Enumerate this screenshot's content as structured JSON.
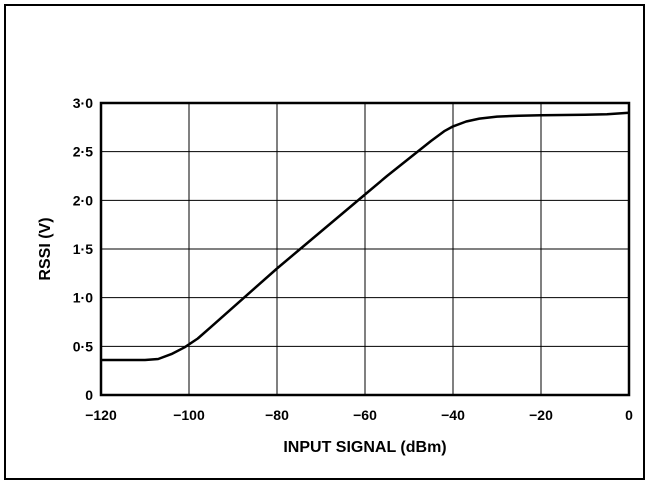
{
  "chart_data": {
    "type": "line",
    "xlabel": "INPUT SIGNAL (dBm)",
    "ylabel": "RSSI (V)",
    "xlim": [
      -120,
      0
    ],
    "ylim": [
      0,
      3.0
    ],
    "grid": true,
    "x_ticks": [
      -120,
      -100,
      -80,
      -60,
      -40,
      -20,
      0
    ],
    "x_tick_labels": [
      "−120",
      "−100",
      "−80",
      "−60",
      "−40",
      "−20",
      "0"
    ],
    "y_ticks": [
      0,
      0.5,
      1.0,
      1.5,
      2.0,
      2.5,
      3.0
    ],
    "y_tick_labels": [
      "0",
      "0·5",
      "1·0",
      "1·5",
      "2·0",
      "2·5",
      "3·0"
    ],
    "series": [
      {
        "x": [
          -120,
          -110,
          -107,
          -104,
          -101,
          -98,
          -95,
          -90,
          -85,
          -80,
          -75,
          -70,
          -65,
          -60,
          -55,
          -50,
          -45,
          -42,
          -40,
          -37,
          -34,
          -30,
          -25,
          -20,
          -10,
          -5,
          0
        ],
        "y": [
          0.36,
          0.36,
          0.37,
          0.42,
          0.49,
          0.58,
          0.7,
          0.9,
          1.1,
          1.3,
          1.49,
          1.68,
          1.87,
          2.06,
          2.25,
          2.43,
          2.61,
          2.71,
          2.76,
          2.81,
          2.84,
          2.86,
          2.87,
          2.875,
          2.88,
          2.885,
          2.9
        ]
      }
    ]
  }
}
